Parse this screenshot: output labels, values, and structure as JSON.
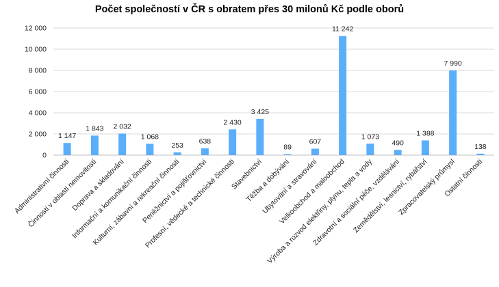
{
  "chart_data": {
    "type": "bar",
    "title": "Počet společností v ČR s obratem přes 30 milonů Kč podle oborů",
    "xlabel": "",
    "ylabel": "",
    "ylim": [
      0,
      12000
    ],
    "yticks": [
      0,
      2000,
      4000,
      6000,
      8000,
      10000,
      12000
    ],
    "ytick_labels": [
      "0",
      "2 000",
      "4 000",
      "6 000",
      "8 000",
      "10 000",
      "12 000"
    ],
    "grid": true,
    "legend": "none",
    "bar_color": "#5aaefa",
    "categories": [
      "Administrativní činnosti",
      "Činnosti v oblasti nemovitostí",
      "Doprava a skladování",
      "Informační a komunikační činnosti",
      "Kulturní, zábavní a rekreační činnosti",
      "Peněžnictví a pojišťovnictví",
      "Profesní, vědecké a technické činnosti",
      "Stavebnictví",
      "Těžba a dobývání",
      "Ubytování a stravování",
      "Velkoobchod a maloobchod",
      "Výroba a rozvod elektřiny, plynu, tepla a vody",
      "Zdravotní a sociální péče, vzdělávání",
      "Zemědělství, lesnictví, rybářství",
      "Zpracovatelský průmysl",
      "Ostatní činnosti"
    ],
    "values": [
      1147,
      1843,
      2032,
      1068,
      253,
      638,
      2430,
      3425,
      89,
      607,
      11242,
      1073,
      490,
      1388,
      7990,
      138
    ],
    "value_labels": [
      "1 147",
      "1 843",
      "2 032",
      "1 068",
      "253",
      "638",
      "2 430",
      "3 425",
      "89",
      "607",
      "11 242",
      "1 073",
      "490",
      "1 388",
      "7 990",
      "138"
    ]
  }
}
